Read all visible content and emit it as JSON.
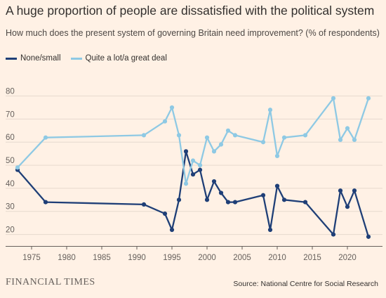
{
  "header": {
    "title": "A huge proportion of people are dissatisfied with the political system",
    "subtitle": "How much does the present system of governing Britain need improvement? (% of respondents)"
  },
  "footer": {
    "brand": "FINANCIAL TIMES",
    "source": "Source: National Centre for Social Research"
  },
  "chart_data": {
    "type": "line",
    "title": "A huge proportion of people are dissatisfied with the political system",
    "subtitle": "How much does the present system of governing Britain need improvement? (% of respondents)",
    "xlabel": "",
    "ylabel": "",
    "xlim": [
      1973,
      2023
    ],
    "ylim": [
      15,
      82
    ],
    "x_ticks": [
      1975,
      1980,
      1985,
      1990,
      1995,
      2000,
      2005,
      2010,
      2015,
      2020
    ],
    "y_ticks": [
      20,
      30,
      40,
      50,
      60,
      70,
      80
    ],
    "grid": "horizontal",
    "legend": "top-left",
    "series": [
      {
        "name": "None/small",
        "color": "#1f3f77",
        "points": [
          [
            1973,
            48
          ],
          [
            1977,
            34
          ],
          [
            1991,
            33
          ],
          [
            1994,
            29
          ],
          [
            1995,
            22
          ],
          [
            1996,
            35
          ],
          [
            1997,
            56
          ],
          [
            1998,
            46
          ],
          [
            1999,
            48
          ],
          [
            2000,
            35
          ],
          [
            2001,
            43
          ],
          [
            2002,
            38
          ],
          [
            2003,
            34
          ],
          [
            2004,
            34
          ],
          [
            2008,
            37
          ],
          [
            2009,
            22
          ],
          [
            2010,
            41
          ],
          [
            2011,
            35
          ],
          [
            2014,
            34
          ],
          [
            2018,
            20
          ],
          [
            2019,
            39
          ],
          [
            2020,
            32
          ],
          [
            2021,
            39
          ],
          [
            2023,
            19
          ]
        ]
      },
      {
        "name": "Quite a lot/a great deal",
        "color": "#8ec9e4",
        "points": [
          [
            1973,
            49
          ],
          [
            1977,
            62
          ],
          [
            1991,
            63
          ],
          [
            1994,
            69
          ],
          [
            1995,
            75
          ],
          [
            1996,
            63
          ],
          [
            1997,
            42
          ],
          [
            1998,
            52
          ],
          [
            1999,
            50
          ],
          [
            2000,
            62
          ],
          [
            2001,
            56
          ],
          [
            2002,
            59
          ],
          [
            2003,
            65
          ],
          [
            2004,
            63
          ],
          [
            2008,
            60
          ],
          [
            2009,
            74
          ],
          [
            2010,
            54
          ],
          [
            2011,
            62
          ],
          [
            2014,
            63
          ],
          [
            2018,
            79
          ],
          [
            2019,
            61
          ],
          [
            2020,
            66
          ],
          [
            2021,
            61
          ],
          [
            2023,
            79
          ]
        ]
      }
    ]
  }
}
